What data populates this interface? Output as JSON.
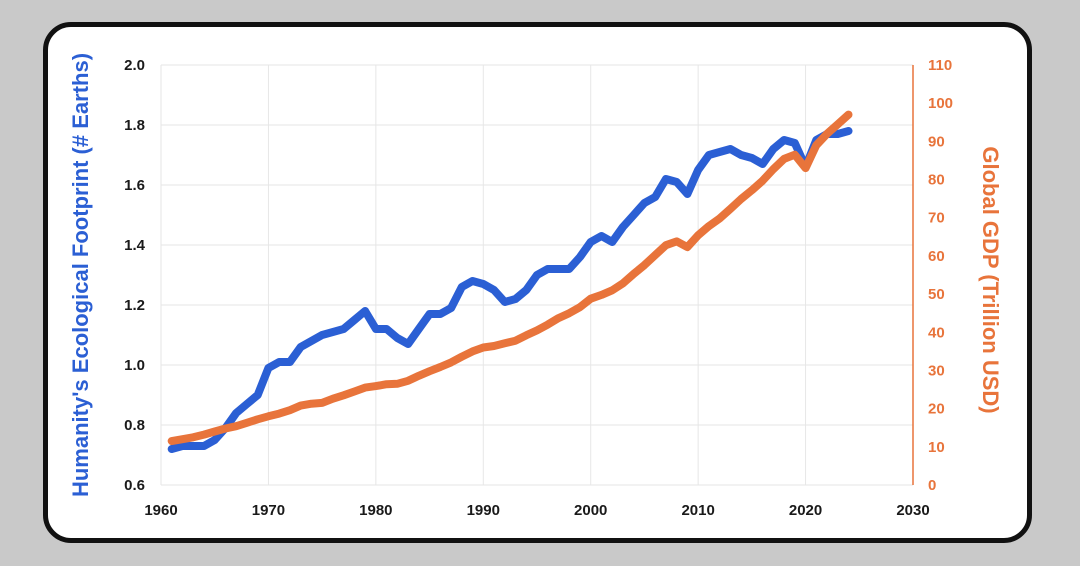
{
  "chart_data": {
    "type": "line",
    "y_axis_left": {
      "label": "Humanity's Ecological Footprint (# Earths)",
      "ticks": [
        "0.6",
        "0.8",
        "1.0",
        "1.2",
        "1.4",
        "1.6",
        "1.8",
        "2.0"
      ],
      "range": [
        0.6,
        2.0
      ],
      "color": "#1a1a1a",
      "label_color": "#2b5fd4"
    },
    "y_axis_right": {
      "label": "Global GDP (Trillion USD)",
      "ticks": [
        "0",
        "10",
        "20",
        "30",
        "40",
        "50",
        "60",
        "70",
        "80",
        "90",
        "100",
        "110"
      ],
      "range": [
        0,
        110
      ],
      "color": "#e8743b"
    },
    "x_axis": {
      "ticks": [
        "1960",
        "1970",
        "1980",
        "1990",
        "2000",
        "2010",
        "2020",
        "2030"
      ],
      "range": [
        1960,
        2030
      ]
    },
    "grid": true,
    "series": [
      {
        "name": "Humanity's Ecological Footprint (# Earths)",
        "axis": "left",
        "color": "#2b5fd4",
        "points": [
          [
            1961,
            0.72
          ],
          [
            1962,
            0.73
          ],
          [
            1963,
            0.73
          ],
          [
            1964,
            0.73
          ],
          [
            1965,
            0.75
          ],
          [
            1966,
            0.79
          ],
          [
            1967,
            0.84
          ],
          [
            1968,
            0.87
          ],
          [
            1969,
            0.9
          ],
          [
            1970,
            0.99
          ],
          [
            1971,
            1.01
          ],
          [
            1972,
            1.01
          ],
          [
            1973,
            1.06
          ],
          [
            1974,
            1.08
          ],
          [
            1975,
            1.1
          ],
          [
            1976,
            1.11
          ],
          [
            1977,
            1.12
          ],
          [
            1978,
            1.15
          ],
          [
            1979,
            1.18
          ],
          [
            1980,
            1.12
          ],
          [
            1981,
            1.12
          ],
          [
            1982,
            1.09
          ],
          [
            1983,
            1.07
          ],
          [
            1984,
            1.12
          ],
          [
            1985,
            1.17
          ],
          [
            1986,
            1.17
          ],
          [
            1987,
            1.19
          ],
          [
            1988,
            1.26
          ],
          [
            1989,
            1.28
          ],
          [
            1990,
            1.27
          ],
          [
            1991,
            1.25
          ],
          [
            1992,
            1.21
          ],
          [
            1993,
            1.22
          ],
          [
            1994,
            1.25
          ],
          [
            1995,
            1.3
          ],
          [
            1996,
            1.32
          ],
          [
            1997,
            1.32
          ],
          [
            1998,
            1.32
          ],
          [
            1999,
            1.36
          ],
          [
            2000,
            1.41
          ],
          [
            2001,
            1.43
          ],
          [
            2002,
            1.41
          ],
          [
            2003,
            1.46
          ],
          [
            2004,
            1.5
          ],
          [
            2005,
            1.54
          ],
          [
            2006,
            1.56
          ],
          [
            2007,
            1.62
          ],
          [
            2008,
            1.61
          ],
          [
            2009,
            1.57
          ],
          [
            2010,
            1.65
          ],
          [
            2011,
            1.7
          ],
          [
            2012,
            1.71
          ],
          [
            2013,
            1.72
          ],
          [
            2014,
            1.7
          ],
          [
            2015,
            1.69
          ],
          [
            2016,
            1.67
          ],
          [
            2017,
            1.72
          ],
          [
            2018,
            1.75
          ],
          [
            2019,
            1.74
          ],
          [
            2020,
            1.66
          ],
          [
            2021,
            1.75
          ],
          [
            2022,
            1.77
          ],
          [
            2023,
            1.77
          ],
          [
            2024,
            1.78
          ]
        ]
      },
      {
        "name": "Global GDP (Trillion USD)",
        "axis": "right",
        "color": "#e8743b",
        "points": [
          [
            1961,
            11.5
          ],
          [
            1962,
            12
          ],
          [
            1963,
            12.5
          ],
          [
            1964,
            13.2
          ],
          [
            1965,
            14
          ],
          [
            1966,
            14.8
          ],
          [
            1967,
            15.4
          ],
          [
            1968,
            16.3
          ],
          [
            1969,
            17.2
          ],
          [
            1970,
            18
          ],
          [
            1971,
            18.7
          ],
          [
            1972,
            19.6
          ],
          [
            1973,
            20.8
          ],
          [
            1974,
            21.3
          ],
          [
            1975,
            21.5
          ],
          [
            1976,
            22.6
          ],
          [
            1977,
            23.5
          ],
          [
            1978,
            24.5
          ],
          [
            1979,
            25.5
          ],
          [
            1980,
            25.9
          ],
          [
            1981,
            26.4
          ],
          [
            1982,
            26.5
          ],
          [
            1983,
            27.3
          ],
          [
            1984,
            28.6
          ],
          [
            1985,
            29.8
          ],
          [
            1986,
            30.9
          ],
          [
            1987,
            32.1
          ],
          [
            1988,
            33.6
          ],
          [
            1989,
            35
          ],
          [
            1990,
            36
          ],
          [
            1991,
            36.4
          ],
          [
            1992,
            37.1
          ],
          [
            1993,
            37.8
          ],
          [
            1994,
            39.2
          ],
          [
            1995,
            40.5
          ],
          [
            1996,
            42
          ],
          [
            1997,
            43.7
          ],
          [
            1998,
            45
          ],
          [
            1999,
            46.6
          ],
          [
            2000,
            48.8
          ],
          [
            2001,
            49.8
          ],
          [
            2002,
            51
          ],
          [
            2003,
            52.8
          ],
          [
            2004,
            55.3
          ],
          [
            2005,
            57.6
          ],
          [
            2006,
            60.2
          ],
          [
            2007,
            62.8
          ],
          [
            2008,
            63.8
          ],
          [
            2009,
            62.3
          ],
          [
            2010,
            65.4
          ],
          [
            2011,
            67.8
          ],
          [
            2012,
            69.8
          ],
          [
            2013,
            72.3
          ],
          [
            2014,
            74.9
          ],
          [
            2015,
            77.2
          ],
          [
            2016,
            79.7
          ],
          [
            2017,
            82.7
          ],
          [
            2018,
            85.4
          ],
          [
            2019,
            86.5
          ],
          [
            2020,
            83
          ],
          [
            2021,
            89
          ],
          [
            2022,
            92
          ],
          [
            2023,
            94.5
          ],
          [
            2024,
            97
          ]
        ]
      }
    ]
  }
}
